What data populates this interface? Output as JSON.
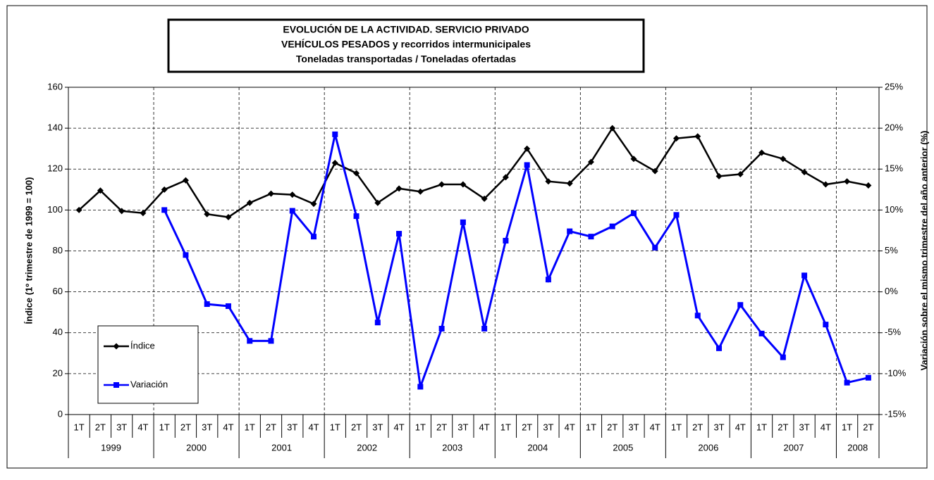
{
  "chart_data": {
    "type": "line",
    "title": [
      "EVOLUCIÓN DE LA ACTIVIDAD. SERVICIO PRIVADO",
      "VEHÍCULOS PESADOS y recorridos intermunicipales",
      "Toneladas transportadas / Toneladas ofertadas"
    ],
    "y_label": "Índice (1º trimestre de 1999 = 100)",
    "y2_label": "Variación sobre el mismo trimestre del año anterior (%)",
    "years": [
      {
        "label": "1999",
        "quarters": [
          "1T",
          "2T",
          "3T",
          "4T"
        ]
      },
      {
        "label": "2000",
        "quarters": [
          "1T",
          "2T",
          "3T",
          "4T"
        ]
      },
      {
        "label": "2001",
        "quarters": [
          "1T",
          "2T",
          "3T",
          "4T"
        ]
      },
      {
        "label": "2002",
        "quarters": [
          "1T",
          "2T",
          "3T",
          "4T"
        ]
      },
      {
        "label": "2003",
        "quarters": [
          "1T",
          "2T",
          "3T",
          "4T"
        ]
      },
      {
        "label": "2004",
        "quarters": [
          "1T",
          "2T",
          "3T",
          "4T"
        ]
      },
      {
        "label": "2005",
        "quarters": [
          "1T",
          "2T",
          "3T",
          "4T"
        ]
      },
      {
        "label": "2006",
        "quarters": [
          "1T",
          "2T",
          "3T",
          "4T"
        ]
      },
      {
        "label": "2007",
        "quarters": [
          "1T",
          "2T",
          "3T",
          "4T"
        ]
      },
      {
        "label": "2008",
        "quarters": [
          "1T",
          "2T"
        ]
      }
    ],
    "series": [
      {
        "name": "Índice",
        "color": "#000000",
        "marker": "diamond",
        "values": [
          100,
          109.5,
          99.5,
          98.5,
          110,
          114.5,
          98,
          96.5,
          103.5,
          108,
          107.5,
          103,
          123,
          118,
          103.5,
          110.5,
          109,
          112.5,
          112.5,
          105.5,
          116,
          130,
          114,
          113,
          123.5,
          140,
          125,
          119,
          135,
          136,
          116.5,
          117.5,
          128,
          125,
          118.5,
          112.5,
          114,
          112
        ]
      },
      {
        "name": "Variación",
        "color": "#0000ff",
        "marker": "square",
        "axis": "y2",
        "values": [
          null,
          null,
          null,
          null,
          10,
          4.5,
          -1.5,
          -1.75,
          -6,
          -6,
          9.9,
          6.75,
          19.25,
          9.25,
          -3.75,
          7.1,
          -11.6,
          -4.5,
          8.5,
          -4.5,
          6.25,
          15.5,
          1.5,
          7.4,
          6.75,
          8,
          9.6,
          5.4,
          9.4,
          -2.9,
          -6.9,
          -1.6,
          -5.1,
          -8,
          2,
          -4,
          -11.1,
          -10.5
        ]
      }
    ],
    "ylim": [
      0,
      160
    ],
    "yticks": [
      0,
      20,
      40,
      60,
      80,
      100,
      120,
      140,
      160
    ],
    "y2lim": [
      -15,
      25
    ],
    "y2ticks": [
      {
        "value": -15,
        "label": "-15%"
      },
      {
        "value": -10,
        "label": "-10%"
      },
      {
        "value": -5,
        "label": "-5%"
      },
      {
        "value": 0,
        "label": "0%"
      },
      {
        "value": 5,
        "label": "5%"
      },
      {
        "value": 10,
        "label": "10%"
      },
      {
        "value": 15,
        "label": "15%"
      },
      {
        "value": 20,
        "label": "20%"
      },
      {
        "value": 25,
        "label": "25%"
      }
    ],
    "grid": true
  }
}
